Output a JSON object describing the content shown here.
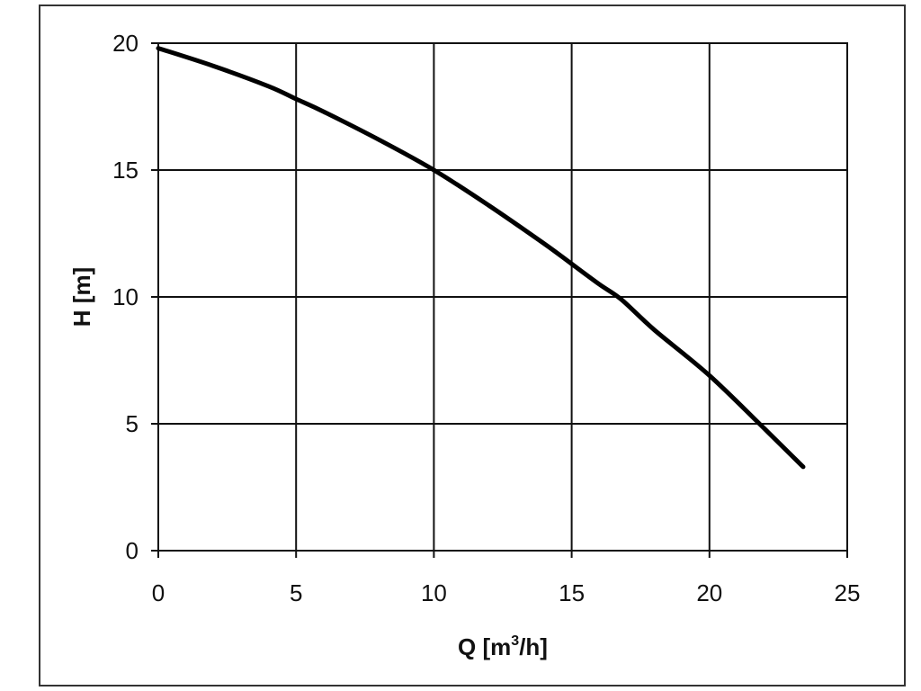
{
  "chart_data": {
    "type": "line",
    "xlabel": {
      "prefix": "Q [m",
      "sup": "3",
      "suffix": "/h]"
    },
    "ylabel": "H [m]",
    "xlim": [
      0,
      25
    ],
    "ylim": [
      0,
      20
    ],
    "xticks": [
      "0",
      "5",
      "10",
      "15",
      "20",
      "25"
    ],
    "yticks": [
      "0",
      "5",
      "10",
      "15",
      "20"
    ],
    "grid": true,
    "legend": "none",
    "series": [
      {
        "color": "#000000",
        "x": [
          0,
          2,
          4,
          5,
          6,
          8,
          10,
          12,
          14,
          15,
          16,
          16.8,
          18,
          20,
          22,
          23.4
        ],
        "y": [
          19.8,
          19.1,
          18.3,
          17.8,
          17.3,
          16.2,
          15.0,
          13.6,
          12.1,
          11.3,
          10.5,
          9.9,
          8.7,
          6.9,
          4.8,
          3.3
        ]
      }
    ]
  }
}
